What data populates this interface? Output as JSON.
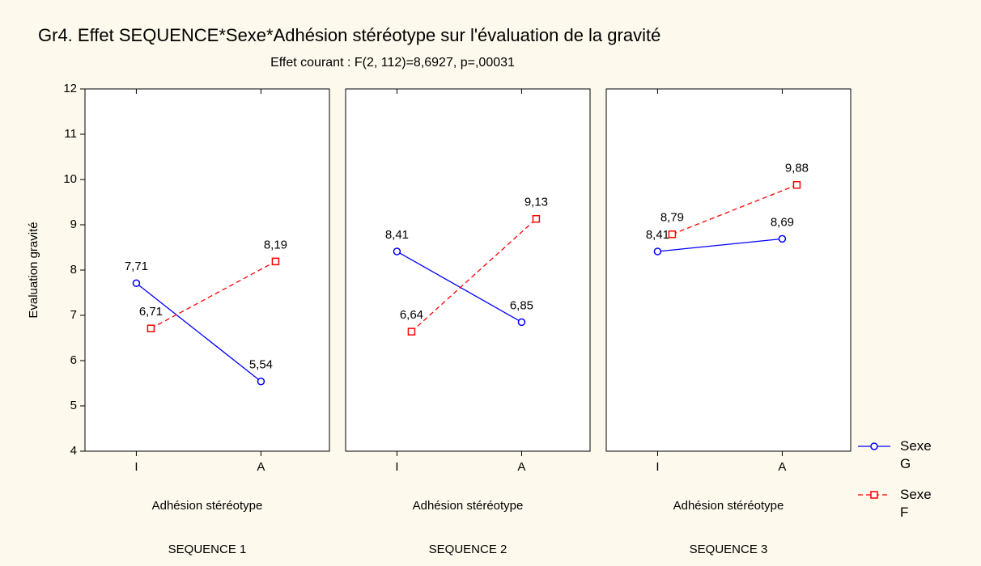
{
  "chart_data": [
    {
      "type": "line",
      "title": "Gr4. Effet  SEQUENCE*Sexe*Adhésion stéréotype sur l'évaluation de la gravité",
      "subtitle": "Effet courant : F(2, 112)=8,6927, p=,00031",
      "ylabel": "Evaluation gravité",
      "panel": "SEQUENCE 1",
      "xlabel": "Adhésion stéréotype",
      "categories": [
        "I",
        "A"
      ],
      "ylim": [
        4,
        12
      ],
      "yticks": [
        4,
        5,
        6,
        7,
        8,
        9,
        10,
        11,
        12
      ],
      "series": [
        {
          "name": "Sexe G",
          "color": "#0000ff",
          "style": "solid",
          "marker": "circle",
          "values": [
            7.71,
            5.54
          ],
          "value_labels": [
            "7,71",
            "5,54"
          ]
        },
        {
          "name": "Sexe F",
          "color": "#ff0000",
          "style": "dashed",
          "marker": "square",
          "values": [
            6.71,
            8.19
          ],
          "value_labels": [
            "6,71",
            "8,19"
          ]
        }
      ]
    },
    {
      "type": "line",
      "panel": "SEQUENCE 2",
      "xlabel": "Adhésion stéréotype",
      "categories": [
        "I",
        "A"
      ],
      "ylim": [
        4,
        12
      ],
      "series": [
        {
          "color": "#0000ff",
          "style": "solid",
          "marker": "circle",
          "values": [
            8.41,
            6.85
          ],
          "value_labels": [
            "8,41",
            "6,85"
          ]
        },
        {
          "color": "#ff0000",
          "style": "dashed",
          "marker": "square",
          "values": [
            6.64,
            9.13
          ],
          "value_labels": [
            "6,64",
            "9,13"
          ]
        }
      ]
    },
    {
      "type": "line",
      "panel": "SEQUENCE 3",
      "xlabel": "Adhésion stéréotype",
      "categories": [
        "I",
        "A"
      ],
      "ylim": [
        4,
        12
      ],
      "series": [
        {
          "color": "#0000ff",
          "style": "solid",
          "marker": "circle",
          "values": [
            8.41,
            8.69
          ],
          "value_labels": [
            "8,41",
            "8,69"
          ]
        },
        {
          "color": "#ff0000",
          "style": "dashed",
          "marker": "square",
          "values": [
            8.79,
            9.88
          ],
          "value_labels": [
            "8,79",
            "9,88"
          ]
        }
      ]
    }
  ]
}
